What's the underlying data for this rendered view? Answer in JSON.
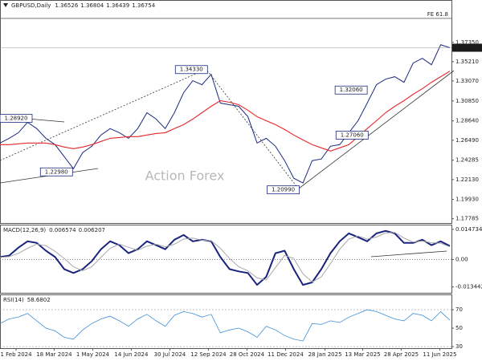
{
  "chart_data": [
    {
      "type": "line",
      "title": "GBPUSD,Daily",
      "ohlc": [
        1.36526,
        1.36804,
        1.36439,
        1.36754
      ],
      "watermark": "Action Forex",
      "fe_label": "FE 61.8",
      "fe_level": 1.4001,
      "xlim": [
        0,
        49
      ],
      "ylim": [
        1.1731,
        1.4196
      ],
      "yticks": [
        {
          "value": 1.3735,
          "label": "1.37350"
        },
        {
          "value": 1.3521,
          "label": "1.35210"
        },
        {
          "value": 1.3307,
          "label": "1.33070"
        },
        {
          "value": 1.3085,
          "label": "1.30850"
        },
        {
          "value": 1.2864,
          "label": "1.28640"
        },
        {
          "value": 1.2649,
          "label": "1.26490"
        },
        1.24285,
        {
          "value": 1.2213,
          "label": "1.22130"
        },
        {
          "value": 1.1993,
          "label": "1.19930"
        },
        1.17785
      ],
      "series": [
        {
          "color": "#1c2a80",
          "values": [
            1.2618,
            1.2671,
            1.2733,
            1.2848,
            1.2778,
            1.2671,
            1.26,
            1.2467,
            1.2334,
            1.2512,
            1.2583,
            1.2707,
            1.2778,
            1.2733,
            1.2671,
            1.2778,
            1.2955,
            1.2884,
            1.2778,
            1.2955,
            1.3177,
            1.331,
            1.3265,
            1.338,
            1.3061,
            1.3044,
            1.3026,
            1.2911,
            1.2618,
            1.2671,
            1.2583,
            1.2423,
            1.2228,
            1.2175,
            1.2423,
            1.2441,
            1.2583,
            1.26,
            1.2733,
            1.2866,
            1.3061,
            1.3265,
            1.3327,
            1.3354,
            1.3292,
            1.3505,
            1.3558,
            1.3487,
            1.3708,
            1.3675
          ]
        },
        {
          "color": "#e8262b",
          "values": [
            1.26,
            1.26,
            1.2609,
            1.2618,
            1.2618,
            1.2618,
            1.26,
            1.2574,
            1.2556,
            1.2574,
            1.26,
            1.2636,
            1.2671,
            1.268,
            1.2689,
            1.2689,
            1.2707,
            1.2724,
            1.2733,
            1.2778,
            1.2822,
            1.2884,
            1.2955,
            1.3026,
            1.3088,
            1.307,
            1.3044,
            1.2982,
            1.2911,
            1.2866,
            1.2822,
            1.2769,
            1.2707,
            1.2653,
            1.26,
            1.2565,
            1.2529,
            1.2565,
            1.26,
            1.2689,
            1.2778,
            1.2866,
            1.2955,
            1.3026,
            1.3088,
            1.3159,
            1.3221,
            1.3292,
            1.3354,
            1.3416
          ]
        }
      ],
      "annotations": [
        {
          "x": 3.5,
          "value": 1.2892,
          "label": "1.28920"
        },
        {
          "x": 7.9,
          "value": 1.2298,
          "label": "1.22980"
        },
        {
          "x": 22.6,
          "value": 1.3433,
          "label": "1.34330"
        },
        {
          "x": 32.6,
          "value": 1.2099,
          "label": "1.20990"
        },
        {
          "x": 40,
          "value": 1.3206,
          "label": "1.32060"
        },
        {
          "x": 40.1,
          "value": 1.2706,
          "label": "1.27060"
        }
      ]
    },
    {
      "type": "macd",
      "title": "MACD(12,26,9)",
      "last": [
        0.006574,
        0.006207
      ],
      "xlim": [
        0,
        49
      ],
      "ylim": [
        -0.01629,
        0.01667
      ],
      "yticks": [
        0.014734,
        {
          "value": 0,
          "label": "0.00"
        },
        -0.013442
      ],
      "series": [
        {
          "color": "#1a237e",
          "values": [
            0.0012,
            0.0019,
            0.0058,
            0.0089,
            0.0081,
            0.0043,
            0.0012,
            -0.0047,
            -0.0066,
            -0.0047,
            -0.0008,
            0.005,
            0.0089,
            0.007,
            0.0031,
            0.005,
            0.0089,
            0.007,
            0.005,
            0.0097,
            0.012,
            0.0089,
            0.0097,
            0.0089,
            0.0012,
            -0.0047,
            -0.0058,
            -0.0066,
            -0.0124,
            -0.0085,
            0.0031,
            0.0043,
            -0.0047,
            -0.0124,
            -0.0112,
            -0.0047,
            0.0031,
            0.0089,
            0.0128,
            0.0109,
            0.0089,
            0.0128,
            0.014,
            0.0128,
            0.0081,
            0.0081,
            0.0097,
            0.007,
            0.0089,
            0.006574
          ]
        },
        {
          "color": "#a9a9a9",
          "values": [
            0.001,
            0.0014,
            0.003,
            0.0055,
            0.0075,
            0.0068,
            0.004,
            0.0005,
            -0.0035,
            -0.0055,
            -0.0035,
            0.001,
            0.0055,
            0.0075,
            0.006,
            0.0045,
            0.0065,
            0.0075,
            0.0062,
            0.0075,
            0.01,
            0.0105,
            0.0095,
            0.0092,
            0.0055,
            0.0005,
            -0.0035,
            -0.0055,
            -0.009,
            -0.01,
            -0.004,
            0.002,
            0.0005,
            -0.007,
            -0.011,
            -0.0085,
            -0.002,
            0.005,
            0.01,
            0.0115,
            0.01,
            0.011,
            0.013,
            0.0132,
            0.0105,
            0.0085,
            0.009,
            0.0082,
            0.008,
            0.006207
          ]
        }
      ]
    },
    {
      "type": "rsi",
      "title": "RSI(14)",
      "last": 58.6802,
      "xlim": [
        0,
        49
      ],
      "ylim": [
        28.3,
        85.7
      ],
      "yticks": [
        70,
        50,
        30
      ],
      "series": [
        {
          "color": "#3d8fd9",
          "values": [
            55,
            60,
            62,
            66,
            58,
            50,
            47,
            40,
            38,
            48,
            55,
            60,
            63,
            58,
            52,
            60,
            65,
            58,
            52,
            64,
            68,
            66,
            62,
            65,
            45,
            48,
            50,
            46,
            40,
            52,
            48,
            42,
            38,
            36,
            55,
            54,
            58,
            56,
            62,
            66,
            70,
            68,
            64,
            60,
            58,
            66,
            64,
            58,
            68,
            58.6802
          ]
        }
      ],
      "xticks": [
        {
          "value": 1.75,
          "label": "1 Feb 2024"
        },
        {
          "value": 5.9,
          "label": "18 Mar 2024"
        },
        {
          "value": 10.1,
          "label": "1 May 2024"
        },
        {
          "value": 14.3,
          "label": "14 Jun 2024"
        },
        {
          "value": 18.5,
          "label": "30 Jul 2024"
        },
        {
          "value": 22.7,
          "label": "12 Sep 2024"
        },
        {
          "value": 26.9,
          "label": "28 Oct 2024"
        },
        {
          "value": 31.1,
          "label": "11 Dec 2024"
        },
        {
          "value": 35.4,
          "label": "28 Jan 2025"
        },
        {
          "value": 39.5,
          "label": "13 Mar 2025"
        },
        {
          "value": 43.7,
          "label": "28 Apr 2025"
        },
        {
          "value": 47.9,
          "label": "11 Jun 2025"
        }
      ]
    }
  ]
}
